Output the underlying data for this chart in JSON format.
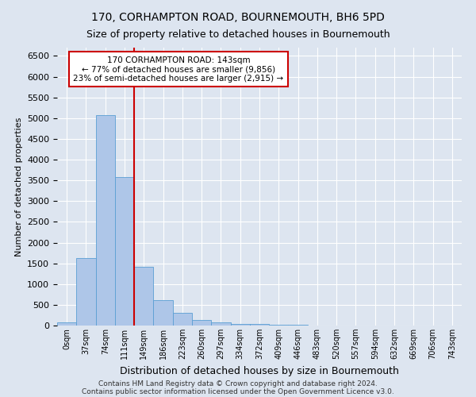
{
  "title1": "170, CORHAMPTON ROAD, BOURNEMOUTH, BH6 5PD",
  "title2": "Size of property relative to detached houses in Bournemouth",
  "xlabel": "Distribution of detached houses by size in Bournemouth",
  "ylabel": "Number of detached properties",
  "footer1": "Contains HM Land Registry data © Crown copyright and database right 2024.",
  "footer2": "Contains public sector information licensed under the Open Government Licence v3.0.",
  "bin_labels": [
    "0sqm",
    "37sqm",
    "74sqm",
    "111sqm",
    "149sqm",
    "186sqm",
    "223sqm",
    "260sqm",
    "297sqm",
    "334sqm",
    "372sqm",
    "409sqm",
    "446sqm",
    "483sqm",
    "520sqm",
    "557sqm",
    "594sqm",
    "632sqm",
    "669sqm",
    "706sqm",
    "743sqm"
  ],
  "bar_values": [
    75,
    1620,
    5080,
    3580,
    1420,
    620,
    300,
    130,
    75,
    45,
    30,
    15,
    10,
    5,
    5,
    3,
    2,
    2,
    2,
    2,
    2
  ],
  "bar_color": "#aec6e8",
  "bar_edge_color": "#5a9fd4",
  "vline_x": 4,
  "vline_color": "#cc0000",
  "annotation_text": "170 CORHAMPTON ROAD: 143sqm\n← 77% of detached houses are smaller (9,856)\n23% of semi-detached houses are larger (2,915) →",
  "annotation_box_color": "#ffffff",
  "annotation_box_edge": "#cc0000",
  "ylim": [
    0,
    6700
  ],
  "yticks": [
    0,
    500,
    1000,
    1500,
    2000,
    2500,
    3000,
    3500,
    4000,
    4500,
    5000,
    5500,
    6000,
    6500
  ],
  "background_color": "#dde5f0",
  "axes_background": "#dde5f0",
  "grid_color": "#ffffff",
  "title1_fontsize": 10,
  "title2_fontsize": 9,
  "annotation_fontsize": 7.5,
  "ylabel_fontsize": 8,
  "xlabel_fontsize": 9,
  "footer_fontsize": 6.5
}
